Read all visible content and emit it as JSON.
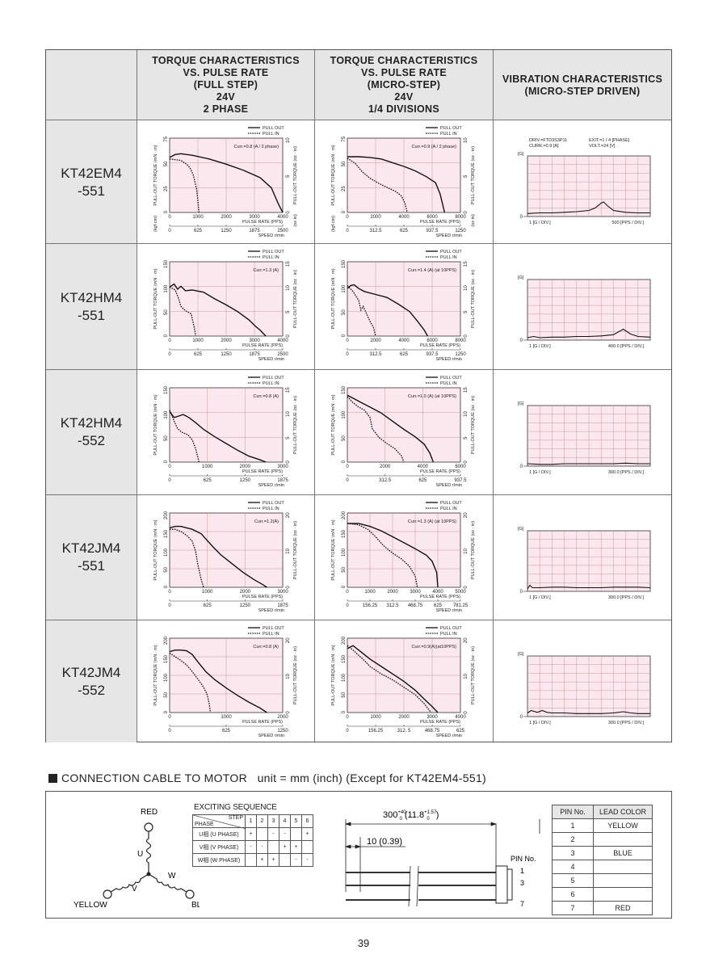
{
  "header": {
    "col1": [
      "TORQUE CHARACTERISTICS",
      "VS. PULSE RATE",
      "(FULL STEP)",
      "24V",
      "2 PHASE"
    ],
    "col2": [
      "TORQUE CHARACTERISTICS",
      "VS. PULSE RATE",
      "(MICRO-STEP)",
      "24V",
      "1/4 DIVISIONS"
    ],
    "col3": [
      "VIBRATION CHARACTERISTICS",
      "(MICRO-STEP DRIVEN)"
    ]
  },
  "legend": {
    "pull_out": "PULL OUT",
    "pull_in": "PULL IN"
  },
  "labels": {
    "y_left": "PULL-OUT TORQUE (mN · m)",
    "y_right": "PULL-OUT TORQUE (oz · in)",
    "kgf_unit": "(kgf·cm)",
    "ozin_unit": "(oz·in)",
    "x_pulse": "PULSE RATE (PPS)",
    "x_speed": "SPEED r/min",
    "vib_g": "[G]",
    "vib_y_div": "1 [G / DIV.]"
  },
  "vib_info": {
    "line1": "DRIV.=FTD3S3P11",
    "line2": "CURR.=0.9 [A]",
    "line3": "EXIT.=1 / 4 [PHASE]",
    "line4": "VOLT.=24 [V]"
  },
  "rows": [
    {
      "model": [
        "KT42EM4",
        "-551"
      ],
      "full": {
        "curr": "Curr.=0.8 (A / 2 phase)",
        "yticks": [
          "0",
          "25",
          "50",
          "75"
        ],
        "rticks": [
          "0",
          "5",
          "10"
        ],
        "xticks": [
          "0",
          "1000",
          "2000",
          "3000",
          "4000"
        ],
        "speed": [
          "0",
          "625",
          "1250",
          "1875",
          "2500"
        ],
        "kgf": true
      },
      "micro": {
        "curr": "Curr.=0.9 (A / 2 phase)",
        "yticks": [
          "0",
          "25",
          "50",
          "75"
        ],
        "rticks": [
          "0",
          "5",
          "10"
        ],
        "xticks": [
          "0",
          "2000",
          "4000",
          "6000",
          "8000"
        ],
        "speed": [
          "0",
          "312.5",
          "625",
          "937.5",
          "1250"
        ],
        "kgf": true
      },
      "vib": {
        "x_div": "500 [PPS / DIV.]",
        "info": true
      }
    },
    {
      "model": [
        "KT42HM4",
        "-551"
      ],
      "full": {
        "curr": "Curr.=1.3 (A)",
        "yticks": [
          "0",
          "50",
          "100",
          "150"
        ],
        "rticks": [
          "0",
          "5",
          "10",
          "15"
        ],
        "xticks": [
          "0",
          "1000",
          "2000",
          "3000",
          "4000"
        ],
        "speed": [
          "0",
          "625",
          "1250",
          "1875",
          "2500"
        ],
        "kgf": false
      },
      "micro": {
        "curr": "Curr.=1.4 (A) (at 10PPS)",
        "yticks": [
          "0",
          "50",
          "100",
          "150"
        ],
        "rticks": [
          "0",
          "5",
          "10",
          "15"
        ],
        "xticks": [
          "0",
          "2000",
          "4000",
          "6000",
          "8000"
        ],
        "speed": [
          "0",
          "312.5",
          "625",
          "937.5",
          "1250"
        ],
        "kgf": false
      },
      "vib": {
        "x_div": "400.0 [PPS / DIV.]",
        "info": false
      }
    },
    {
      "model": [
        "KT42HM4",
        "-552"
      ],
      "full": {
        "curr": "Curr.=0.8 (A)",
        "yticks": [
          "0",
          "50",
          "100",
          "150"
        ],
        "rticks": [
          "0",
          "5",
          "10",
          "15"
        ],
        "xticks": [
          "0",
          "1000",
          "2000",
          "3000"
        ],
        "speed": [
          "0",
          "625",
          "1250",
          "1875"
        ],
        "kgf": false
      },
      "micro": {
        "curr": "Curr.=1.0 (A) (at 10PPS)",
        "yticks": [
          "0",
          "50",
          "100",
          "150"
        ],
        "rticks": [
          "0",
          "5",
          "10",
          "15"
        ],
        "xticks": [
          "0",
          "2000",
          "4000",
          "6000"
        ],
        "speed": [
          "0",
          "312.5",
          "625",
          "937.5"
        ],
        "kgf": false
      },
      "vib": {
        "x_div": "300.0 [PPS / DIV.]",
        "info": false
      }
    },
    {
      "model": [
        "KT42JM4",
        "-551"
      ],
      "full": {
        "curr": "Curr.=1.2(A)",
        "yticks": [
          "0",
          "50",
          "100",
          "150",
          "200"
        ],
        "rticks": [
          "0",
          "10",
          "20"
        ],
        "xticks": [
          "0",
          "1000",
          "2000",
          "3000"
        ],
        "speed": [
          "0",
          "625",
          "1250",
          "1875"
        ],
        "kgf": false
      },
      "micro": {
        "curr": "Curr.=1.3 (A) (at 10PPS)",
        "yticks": [
          "0",
          "50",
          "100",
          "150",
          "200"
        ],
        "rticks": [
          "0",
          "10",
          "20"
        ],
        "xticks": [
          "0",
          "1000",
          "2000",
          "3000",
          "4000",
          "5000"
        ],
        "speed": [
          "0",
          "156.25",
          "312.5",
          "468.75",
          "625",
          "781.25"
        ],
        "kgf": false
      },
      "vib": {
        "x_div": "300.0 [PPS / DIV.]",
        "info": false
      }
    },
    {
      "model": [
        "KT42JM4",
        "-552"
      ],
      "full": {
        "curr": "Curr.=0.8 (A)",
        "yticks": [
          "0",
          "50",
          "100",
          "150",
          "200"
        ],
        "rticks": [
          "0",
          "10",
          "20"
        ],
        "xticks": [
          "0",
          "1000",
          "2000"
        ],
        "speed": [
          "0",
          "625",
          "1250"
        ],
        "kgf": false
      },
      "micro": {
        "curr": "Curr.=0.9(A)(at10PPS)",
        "yticks": [
          "0",
          "50",
          "100",
          "150",
          "200"
        ],
        "rticks": [
          "0",
          "10",
          "20"
        ],
        "xticks": [
          "0",
          "1000",
          "2000",
          "3000",
          "4000"
        ],
        "speed": [
          "0",
          "156.25",
          "312. 5",
          "468.75",
          "625"
        ],
        "kgf": false
      },
      "vib": {
        "x_div": "300.0 [PPS / DIV.]",
        "info": false
      }
    }
  ],
  "connection": {
    "title": "CONNECTION CABLE TO MOTOR",
    "unit": "unit = mm (inch) (Except for KT42EM4-551)",
    "wire_labels": {
      "red": "RED",
      "yellow": "YELLOW",
      "blue": "BLUE",
      "u": "U",
      "v": "V",
      "w": "W"
    },
    "exciting": {
      "title": "EXCITING SEQUENCE",
      "step_label": "STEP",
      "phase_label": "PHASE",
      "steps": [
        "1",
        "2",
        "3",
        "4",
        "5",
        "6"
      ],
      "rows": [
        {
          "phase": "U相 (U PHASE)",
          "cells": [
            "+",
            "",
            "-",
            "-",
            "",
            "+"
          ]
        },
        {
          "phase": "V相 (V PHASE)",
          "cells": [
            "-",
            "-",
            "",
            "+",
            "+",
            ""
          ]
        },
        {
          "phase": "W相 (W PHASE)",
          "cells": [
            "",
            "+",
            "+",
            "",
            "-",
            "-"
          ]
        }
      ]
    },
    "dims": {
      "length": "300",
      "length_tol_up": "+40",
      "length_tol_dn": "0",
      "length_in": "(11.8",
      "length_in_tol_up": "+1.57",
      "length_in_tol_dn": "0",
      "length_close": ")",
      "strip": "10 (0.39)",
      "pin_no": "PIN No.",
      "pin1": "1",
      "pin3": "3",
      "pin7": "7"
    },
    "pins": {
      "headers": [
        "PIN No.",
        "LEAD COLOR"
      ],
      "rows": [
        {
          "no": "1",
          "color": "YELLOW"
        },
        {
          "no": "2",
          "color": ""
        },
        {
          "no": "3",
          "color": "BLUE"
        },
        {
          "no": "4",
          "color": ""
        },
        {
          "no": "5",
          "color": ""
        },
        {
          "no": "6",
          "color": ""
        },
        {
          "no": "7",
          "color": "RED"
        }
      ]
    }
  },
  "page_number": "39"
}
